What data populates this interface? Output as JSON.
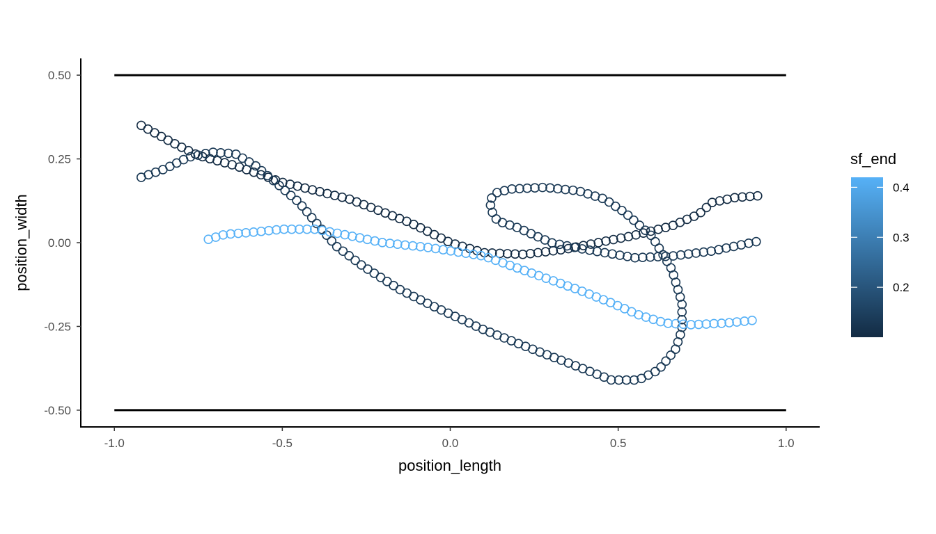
{
  "chart_data": {
    "type": "scatter",
    "title": "",
    "xlabel": "position_length",
    "ylabel": "position_width",
    "xlim": [
      -1.1,
      1.1
    ],
    "ylim": [
      -0.55,
      0.55
    ],
    "x_ticks": [
      -1.0,
      -0.5,
      0.0,
      0.5,
      1.0
    ],
    "x_tick_labels": [
      "-1.0",
      "-0.5",
      "0.0",
      "0.5",
      "1.0"
    ],
    "y_ticks": [
      -0.5,
      -0.25,
      0.0,
      0.25,
      0.5
    ],
    "y_tick_labels": [
      "-0.50",
      "-0.25",
      "0.00",
      "0.25",
      "0.50"
    ],
    "grid": false,
    "reference_lines": [
      {
        "x": [
          -1.0,
          1.0
        ],
        "y": [
          0.5,
          0.5
        ],
        "color": "#000000"
      },
      {
        "x": [
          -1.0,
          1.0
        ],
        "y": [
          -0.5,
          -0.5
        ],
        "color": "#000000"
      }
    ],
    "color_scale": {
      "name": "sf_end",
      "limits": [
        0.1,
        0.42
      ],
      "breaks": [
        0.2,
        0.3,
        0.4
      ],
      "break_labels": [
        "0.2",
        "0.3",
        "0.4"
      ],
      "low_color": "#132B43",
      "high_color": "#56B1F7",
      "legend_position": "right"
    },
    "series": [
      {
        "sf_end": 0.1,
        "path": [
          [
            -0.92,
            0.35
          ],
          [
            -0.83,
            0.3
          ],
          [
            -0.75,
            0.26
          ],
          [
            -0.64,
            0.23
          ],
          [
            -0.5,
            0.18
          ],
          [
            -0.3,
            0.13
          ],
          [
            -0.12,
            0.06
          ],
          [
            0.0,
            0.0
          ],
          [
            0.1,
            -0.03
          ],
          [
            0.22,
            -0.035
          ],
          [
            0.34,
            -0.02
          ],
          [
            0.44,
            0.0
          ],
          [
            0.54,
            0.02
          ],
          [
            0.66,
            0.05
          ],
          [
            0.74,
            0.085
          ],
          [
            0.78,
            0.12
          ],
          [
            0.85,
            0.135
          ],
          [
            0.92,
            0.14
          ]
        ]
      },
      {
        "sf_end": 0.13,
        "path": [
          [
            -0.92,
            0.195
          ],
          [
            -0.85,
            0.22
          ],
          [
            -0.78,
            0.255
          ],
          [
            -0.71,
            0.27
          ],
          [
            -0.64,
            0.265
          ],
          [
            -0.58,
            0.23
          ],
          [
            -0.52,
            0.18
          ],
          [
            -0.45,
            0.12
          ],
          [
            -0.4,
            0.06
          ],
          [
            -0.34,
            -0.01
          ],
          [
            -0.26,
            -0.07
          ],
          [
            -0.15,
            -0.14
          ],
          [
            -0.05,
            -0.19
          ],
          [
            0.1,
            -0.26
          ],
          [
            0.25,
            -0.32
          ],
          [
            0.38,
            -0.37
          ],
          [
            0.48,
            -0.41
          ],
          [
            0.56,
            -0.41
          ],
          [
            0.62,
            -0.38
          ],
          [
            0.67,
            -0.32
          ],
          [
            0.69,
            -0.26
          ],
          [
            0.69,
            -0.18
          ],
          [
            0.66,
            -0.08
          ],
          [
            0.6,
            0.02
          ],
          [
            0.52,
            0.09
          ],
          [
            0.46,
            0.13
          ],
          [
            0.38,
            0.155
          ],
          [
            0.28,
            0.165
          ],
          [
            0.18,
            0.16
          ],
          [
            0.14,
            0.15
          ],
          [
            0.12,
            0.13
          ],
          [
            0.12,
            0.1
          ],
          [
            0.14,
            0.065
          ],
          [
            0.2,
            0.045
          ],
          [
            0.3,
            0.0
          ],
          [
            0.4,
            -0.02
          ],
          [
            0.55,
            -0.045
          ],
          [
            0.66,
            -0.04
          ],
          [
            0.78,
            -0.025
          ],
          [
            0.92,
            0.005
          ]
        ]
      },
      {
        "sf_end": 0.42,
        "path": [
          [
            -0.72,
            0.01
          ],
          [
            -0.67,
            0.025
          ],
          [
            -0.6,
            0.03
          ],
          [
            -0.5,
            0.04
          ],
          [
            -0.4,
            0.04
          ],
          [
            -0.32,
            0.025
          ],
          [
            -0.2,
            0.0
          ],
          [
            -0.06,
            -0.015
          ],
          [
            0.1,
            -0.04
          ],
          [
            0.24,
            -0.09
          ],
          [
            0.38,
            -0.14
          ],
          [
            0.48,
            -0.18
          ],
          [
            0.56,
            -0.215
          ],
          [
            0.64,
            -0.24
          ],
          [
            0.72,
            -0.245
          ],
          [
            0.82,
            -0.24
          ],
          [
            0.92,
            -0.23
          ]
        ]
      }
    ]
  }
}
